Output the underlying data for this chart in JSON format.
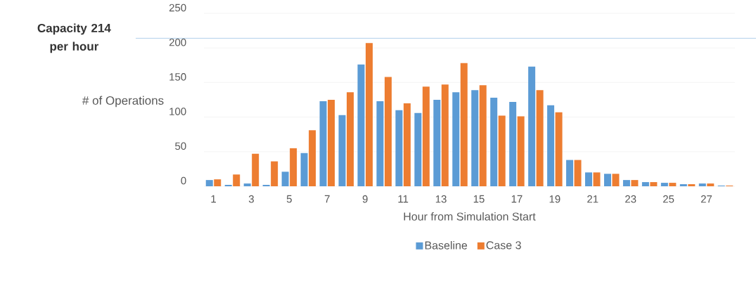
{
  "chart_data": {
    "type": "bar",
    "xlabel": "Hour from Simulation Start",
    "ylabel": "# of Operations",
    "categories": [
      "1",
      null,
      "3",
      null,
      "5",
      null,
      "7",
      null,
      "9",
      null,
      "11",
      null,
      "13",
      null,
      "15",
      null,
      "17",
      null,
      "19",
      null,
      "21",
      null,
      "23",
      null,
      "25",
      null,
      "27",
      null
    ],
    "series": [
      {
        "name": "Baseline",
        "color": "#5b9bd5",
        "values": [
          9,
          2,
          4,
          2,
          21,
          48,
          123,
          103,
          176,
          123,
          110,
          106,
          125,
          136,
          139,
          128,
          122,
          173,
          117,
          38,
          20,
          18,
          9,
          6,
          5,
          3,
          4,
          1
        ]
      },
      {
        "name": "Case 3",
        "color": "#ed7d31",
        "values": [
          10,
          17,
          47,
          36,
          55,
          81,
          125,
          136,
          207,
          158,
          120,
          144,
          147,
          178,
          146,
          102,
          101,
          139,
          107,
          38,
          20,
          18,
          9,
          6,
          5,
          3,
          4,
          1
        ]
      }
    ],
    "ylim": [
      0,
      250
    ],
    "yticks": [
      0,
      50,
      100,
      150,
      200,
      250
    ],
    "ref_lines": [
      {
        "axis": "y",
        "value": 214,
        "label": "Capacity 214 per hour",
        "color": "#9dc3e6"
      }
    ],
    "grid": "y",
    "legend": "bottom"
  }
}
